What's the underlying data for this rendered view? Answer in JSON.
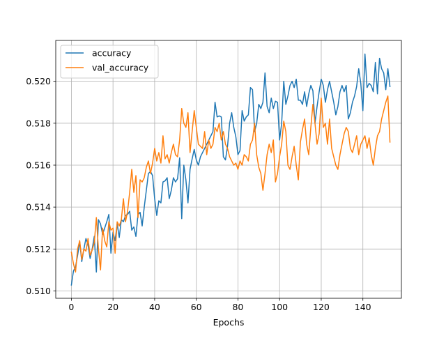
{
  "chart_data": {
    "type": "line",
    "title": "",
    "xlabel": "Epochs",
    "ylabel": "",
    "xlim": [
      -7.5,
      158.5
    ],
    "ylim": [
      0.50965,
      0.52195
    ],
    "x_ticks": [
      0,
      20,
      40,
      60,
      80,
      100,
      120,
      140
    ],
    "x_tick_labels": [
      "0",
      "20",
      "40",
      "60",
      "80",
      "100",
      "120",
      "140"
    ],
    "y_ticks": [
      0.51,
      0.512,
      0.514,
      0.516,
      0.518,
      0.52
    ],
    "y_tick_labels": [
      "0.510",
      "0.512",
      "0.514",
      "0.516",
      "0.518",
      "0.520"
    ],
    "grid": true,
    "legend_position": "upper-left",
    "colors": {
      "accuracy": "#1f77b4",
      "val_accuracy": "#ff7f0e"
    },
    "series": [
      {
        "name": "accuracy",
        "color": "#1f77b4",
        "values": [
          0.51028,
          0.51095,
          0.51115,
          0.5117,
          0.51235,
          0.5114,
          0.512,
          0.5125,
          0.5122,
          0.51155,
          0.512,
          0.5126,
          0.5109,
          0.5134,
          0.5132,
          0.5127,
          0.513,
          0.5133,
          0.51365,
          0.5118,
          0.5128,
          0.5124,
          0.5132,
          0.51255,
          0.5134,
          0.5133,
          0.5136,
          0.51365,
          0.5138,
          0.5129,
          0.51305,
          0.5126,
          0.51365,
          0.51375,
          0.5131,
          0.514,
          0.5148,
          0.5156,
          0.5157,
          0.5155,
          0.5144,
          0.5136,
          0.5143,
          0.5142,
          0.5152,
          0.51525,
          0.5154,
          0.5144,
          0.5148,
          0.5154,
          0.5152,
          0.51535,
          0.51635,
          0.51345,
          0.516,
          0.5153,
          0.5142,
          0.5158,
          0.5163,
          0.51675,
          0.51625,
          0.516,
          0.5164,
          0.5166,
          0.5168,
          0.517,
          0.5172,
          0.5174,
          0.5176,
          0.519,
          0.5183,
          0.51835,
          0.5183,
          0.5164,
          0.51625,
          0.5169,
          0.518,
          0.5185,
          0.5178,
          0.51735,
          0.5165,
          0.5167,
          0.5186,
          0.5181,
          0.5183,
          0.5184,
          0.5197,
          0.5196,
          0.5176,
          0.518,
          0.5189,
          0.5187,
          0.519,
          0.5204,
          0.5188,
          0.5185,
          0.5192,
          0.5187,
          0.51905,
          0.519,
          0.5172,
          0.518,
          0.52,
          0.5189,
          0.5193,
          0.5198,
          0.52,
          0.5197,
          0.5201,
          0.5191,
          0.5191,
          0.5189,
          0.5195,
          0.5188,
          0.5194,
          0.5198,
          0.51955,
          0.518,
          0.5188,
          0.5195,
          0.5201,
          0.5198,
          0.519,
          0.5196,
          0.52,
          0.5195,
          0.519,
          0.5184,
          0.5188,
          0.5195,
          0.5198,
          0.5195,
          0.5198,
          0.5182,
          0.5185,
          0.519,
          0.5193,
          0.51975,
          0.5206,
          0.5199,
          0.5186,
          0.5213,
          0.5197,
          0.5199,
          0.5198,
          0.5195,
          0.5209,
          0.5194,
          0.5211,
          0.5206,
          0.5204,
          0.5196,
          0.5206,
          0.51975
        ]
      },
      {
        "name": "val_accuracy",
        "color": "#ff7f0e",
        "values": [
          0.51185,
          0.5113,
          0.5109,
          0.512,
          0.5124,
          0.5115,
          0.512,
          0.5119,
          0.5125,
          0.5117,
          0.51195,
          0.5123,
          0.5135,
          0.512,
          0.511,
          0.513,
          0.5124,
          0.5121,
          0.5133,
          0.5129,
          0.513,
          0.5118,
          0.5133,
          0.5131,
          0.5134,
          0.5144,
          0.5133,
          0.5138,
          0.5147,
          0.5158,
          0.5147,
          0.5155,
          0.5135,
          0.5153,
          0.5152,
          0.5154,
          0.5159,
          0.5162,
          0.5156,
          0.5161,
          0.5168,
          0.5162,
          0.5166,
          0.5161,
          0.5174,
          0.5163,
          0.5165,
          0.5161,
          0.5166,
          0.517,
          0.5165,
          0.5164,
          0.5172,
          0.5187,
          0.518,
          0.5178,
          0.5185,
          0.5166,
          0.5176,
          0.5186,
          0.5178,
          0.517,
          0.5169,
          0.5168,
          0.5176,
          0.5165,
          0.5172,
          0.5168,
          0.517,
          0.5178,
          0.5176,
          0.518,
          0.5172,
          0.5176,
          0.517,
          0.5168,
          0.5164,
          0.5162,
          0.516,
          0.5161,
          0.5158,
          0.5162,
          0.516,
          0.5165,
          0.5164,
          0.5162,
          0.517,
          0.5172,
          0.518,
          0.5165,
          0.5159,
          0.5156,
          0.5148,
          0.5156,
          0.5165,
          0.517,
          0.5166,
          0.5172,
          0.5152,
          0.5156,
          0.5164,
          0.517,
          0.5181,
          0.5176,
          0.516,
          0.5158,
          0.5164,
          0.5169,
          0.516,
          0.5153,
          0.5171,
          0.5177,
          0.5182,
          0.517,
          0.5165,
          0.5178,
          0.5189,
          0.518,
          0.517,
          0.5175,
          0.5192,
          0.5178,
          0.518,
          0.517,
          0.5182,
          0.5168,
          0.5164,
          0.516,
          0.5158,
          0.5165,
          0.517,
          0.5175,
          0.5178,
          0.5176,
          0.5168,
          0.5166,
          0.517,
          0.5174,
          0.5165,
          0.517,
          0.5172,
          0.5174,
          0.5168,
          0.5173,
          0.5165,
          0.516,
          0.5168,
          0.5174,
          0.5176,
          0.5182,
          0.5186,
          0.519,
          0.5193,
          0.5171
        ]
      }
    ]
  }
}
